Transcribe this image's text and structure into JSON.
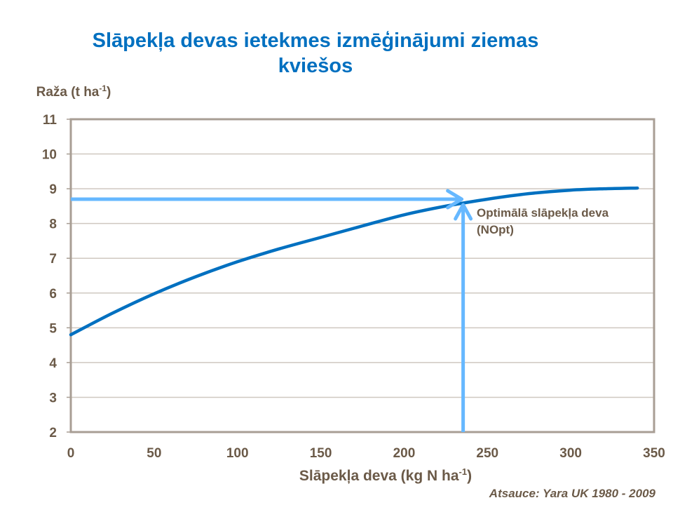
{
  "chart_data": {
    "type": "line",
    "title_line1": "Slāpekļa devas ietekmes izmēģinājumi ziemas",
    "title_line2": "kviešos",
    "ylabel": "Raža (t ha",
    "ylabel_sup": "-1",
    "ylabel_end": ")",
    "xlabel": "Slāpekļa deva (kg N ha",
    "xlabel_sup": "-1",
    "xlabel_end": ")",
    "xlim": [
      0,
      350
    ],
    "ylim": [
      2,
      11
    ],
    "xticks": [
      0,
      50,
      100,
      150,
      200,
      250,
      300,
      350
    ],
    "yticks": [
      2,
      3,
      4,
      5,
      6,
      7,
      8,
      9,
      10,
      11
    ],
    "grid": true,
    "series": [
      {
        "name": "Raža",
        "color": "#0070c0",
        "x": [
          0,
          25,
          50,
          75,
          100,
          125,
          150,
          175,
          200,
          225,
          250,
          275,
          300,
          320,
          340
        ],
        "y": [
          4.8,
          5.42,
          5.98,
          6.47,
          6.9,
          7.27,
          7.6,
          7.93,
          8.25,
          8.5,
          8.7,
          8.86,
          8.96,
          9.0,
          9.02
        ]
      }
    ],
    "annotation": {
      "line1": "Optimālā slāpekļa deva",
      "line2": "(NOpt)",
      "nopt_x": 235,
      "nopt_y": 8.7,
      "arrow_color": "#66b8ff"
    },
    "source": "Atsauce: Yara UK 1980 - 2009"
  }
}
